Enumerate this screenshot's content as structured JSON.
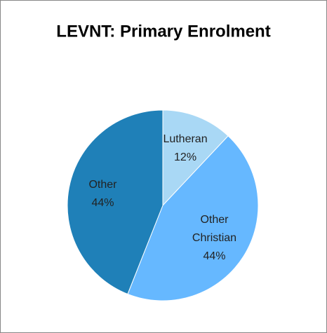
{
  "chart_data": {
    "type": "pie",
    "title": "LEVNT: Primary Enrolment",
    "categories": [
      "Lutheran",
      "Other Christian",
      "Other"
    ],
    "values": [
      12,
      44,
      44
    ],
    "value_labels": [
      "12%",
      "44%",
      "44%"
    ],
    "colors": [
      "#a9d8f5",
      "#66b8ff",
      "#1f80b8"
    ]
  }
}
